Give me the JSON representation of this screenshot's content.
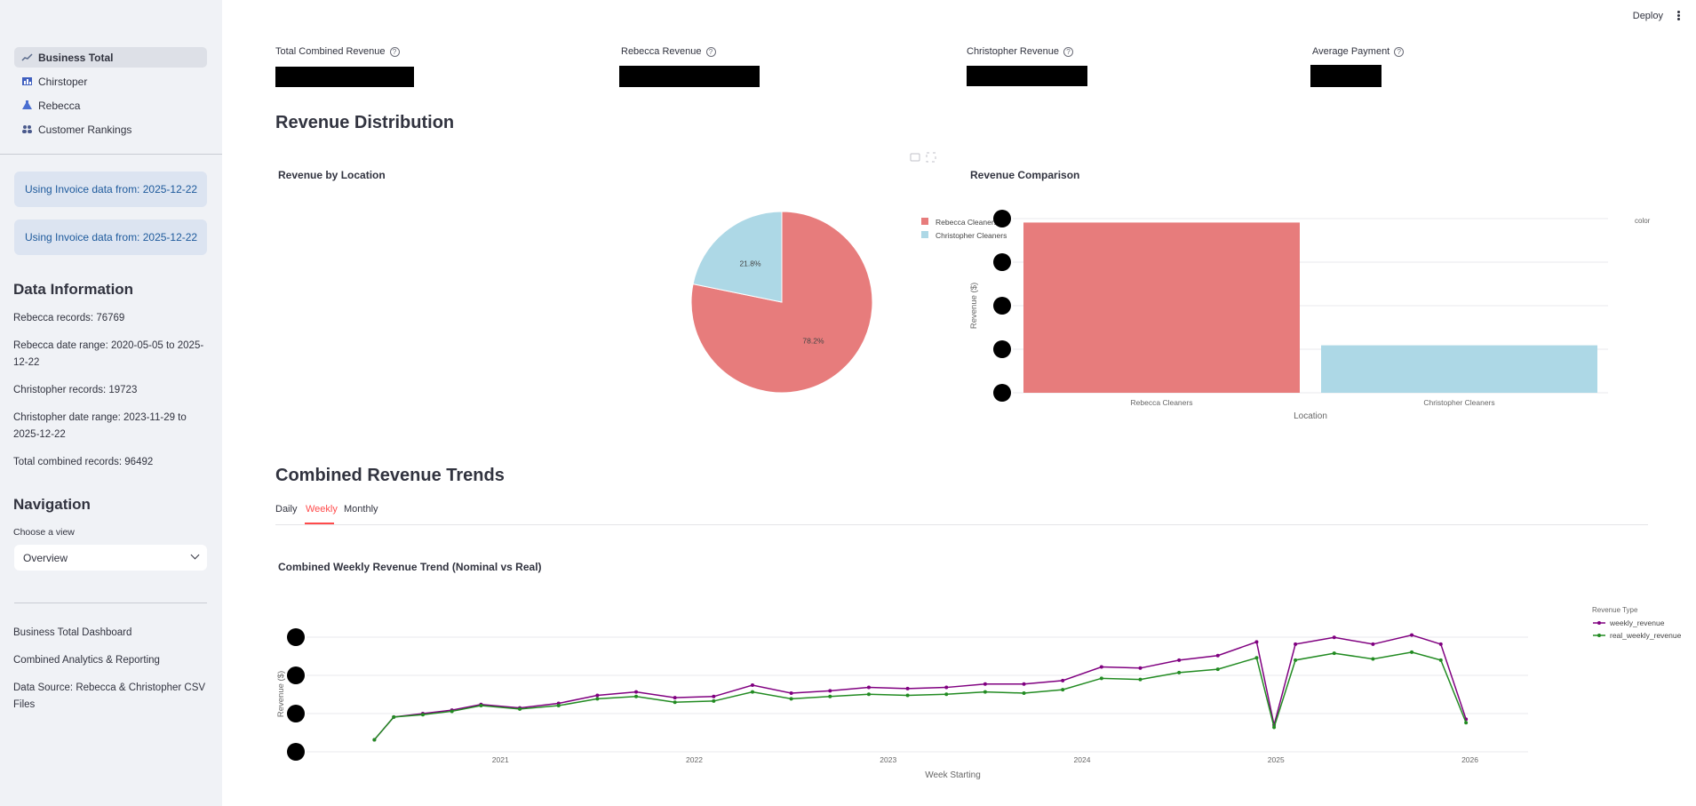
{
  "sidebar": {
    "nav": [
      {
        "label": "Business Total",
        "icon": "chart-icon",
        "active": true
      },
      {
        "label": "Chirstoper",
        "icon": "bar-chart-icon",
        "active": false
      },
      {
        "label": "Rebecca",
        "icon": "flask-icon",
        "active": false
      },
      {
        "label": "Customer Rankings",
        "icon": "users-icon",
        "active": false
      }
    ],
    "info_boxes": [
      "Using Invoice data from: 2025-12-22",
      "Using Invoice data from: 2025-12-22"
    ],
    "data_info": {
      "title": "Data Information",
      "rebecca_records": "Rebecca records: 76769",
      "rebecca_range": "Rebecca date range: 2020-05-05 to 2025-12-22",
      "christopher_records": "Christopher records: 19723",
      "christopher_range": "Christopher date range: 2023-11-29 to 2025-12-22",
      "total_records": "Total combined records: 96492"
    },
    "navigation": {
      "title": "Navigation",
      "select_label": "Choose a view",
      "selected": "Overview"
    },
    "footer": [
      "Business Total Dashboard",
      "Combined Analytics & Reporting",
      "Data Source: Rebecca & Christopher CSV Files"
    ]
  },
  "toolbar": {
    "deploy": "Deploy"
  },
  "metrics": [
    {
      "label": "Total Combined Revenue"
    },
    {
      "label": "Rebecca Revenue"
    },
    {
      "label": "Christopher Revenue"
    },
    {
      "label": "Average Payment"
    }
  ],
  "section1": {
    "title": "Revenue Distribution"
  },
  "section2": {
    "title": "Combined Revenue Trends",
    "tabs": [
      "Daily",
      "Weekly",
      "Monthly"
    ],
    "active_tab": 1
  },
  "colors": {
    "rebecca": "#e77c7c",
    "christopher": "#add8e6",
    "nominal": "#800080",
    "real": "#228b22"
  },
  "chart_data": [
    {
      "type": "pie",
      "title": "Revenue by Location",
      "labels": [
        "Rebecca Cleaners",
        "Christopher Cleaners"
      ],
      "values": [
        78.2,
        21.8
      ],
      "value_labels": [
        "78.2%",
        "21.8%"
      ],
      "legend": "top-right"
    },
    {
      "type": "bar",
      "title": "Revenue Comparison",
      "categories": [
        "Rebecca Cleaners",
        "Christopher Cleaners"
      ],
      "values": [
        78.2,
        21.8
      ],
      "xlabel": "Location",
      "ylabel": "Revenue ($)",
      "legend_title": "color",
      "legend": "top-right",
      "ylim": [
        0,
        80
      ]
    },
    {
      "type": "line",
      "title": "Combined Weekly Revenue Trend (Nominal vs Real)",
      "xlabel": "Week Starting",
      "ylabel": "Revenue ($)",
      "legend_title": "Revenue Type",
      "legend": "top-right",
      "x_ticks": [
        "2021",
        "2022",
        "2023",
        "2024",
        "2025",
        "2026"
      ],
      "xlim": [
        2020.0,
        2026.3
      ],
      "ylim": [
        0,
        100
      ],
      "series": [
        {
          "name": "weekly_revenue",
          "x": [
            2020.35,
            2020.45,
            2020.6,
            2020.75,
            2020.9,
            2021.1,
            2021.3,
            2021.5,
            2021.7,
            2021.9,
            2022.1,
            2022.3,
            2022.5,
            2022.7,
            2022.9,
            2023.1,
            2023.3,
            2023.5,
            2023.7,
            2023.9,
            2024.1,
            2024.3,
            2024.5,
            2024.7,
            2024.9,
            2024.99,
            2025.1,
            2025.3,
            2025.5,
            2025.7,
            2025.85,
            2025.98
          ],
          "values": [
            2,
            22,
            25,
            28,
            33,
            30,
            34,
            41,
            44,
            39,
            40,
            50,
            43,
            45,
            48,
            47,
            48,
            51,
            51,
            54,
            66,
            65,
            72,
            76,
            88,
            15,
            86,
            92,
            86,
            94,
            86,
            20
          ]
        },
        {
          "name": "real_weekly_revenue",
          "x": [
            2020.35,
            2020.45,
            2020.6,
            2020.75,
            2020.9,
            2021.1,
            2021.3,
            2021.5,
            2021.7,
            2021.9,
            2022.1,
            2022.3,
            2022.5,
            2022.7,
            2022.9,
            2023.1,
            2023.3,
            2023.5,
            2023.7,
            2023.9,
            2024.1,
            2024.3,
            2024.5,
            2024.7,
            2024.9,
            2024.99,
            2025.1,
            2025.3,
            2025.5,
            2025.7,
            2025.85,
            2025.98
          ],
          "values": [
            2,
            22,
            24,
            27,
            32,
            29,
            32,
            38,
            40,
            35,
            36,
            44,
            38,
            40,
            42,
            41,
            42,
            44,
            43,
            46,
            56,
            55,
            61,
            64,
            74,
            13,
            72,
            78,
            73,
            79,
            72,
            17
          ]
        }
      ]
    }
  ]
}
